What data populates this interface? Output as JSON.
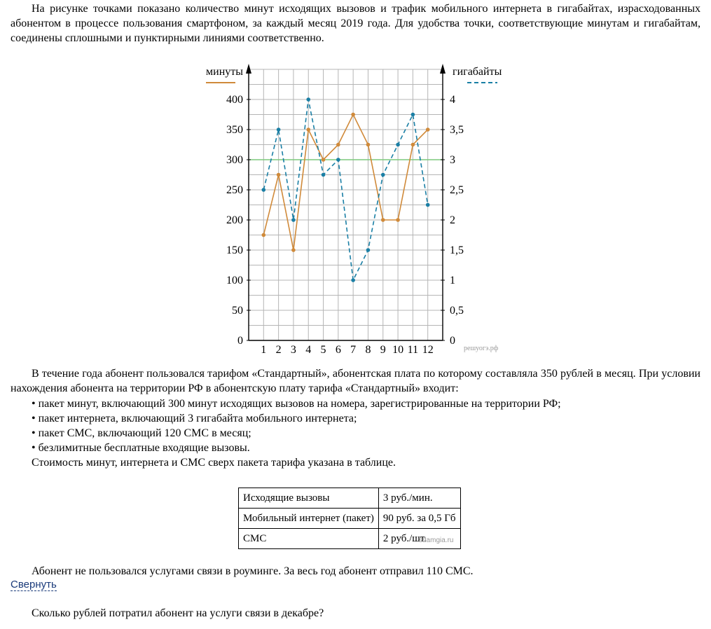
{
  "intro": "На рисунке точками показано количество минут исходящих вызовов и трафик мобильного интернета в гигабайтах, израсходованных абонентом в процессе пользования смартфоном, за каждый месяц 2019 года. Для удобства точки, соответствующие минутам и гигабайтам, соединены сплошными и пунктирными линиями соответственно.",
  "chart_data": {
    "type": "line",
    "x": [
      1,
      2,
      3,
      4,
      5,
      6,
      7,
      8,
      9,
      10,
      11,
      12
    ],
    "x_tick_labels": [
      "1",
      "2",
      "3",
      "4",
      "5",
      "6",
      "7",
      "8",
      "9",
      "10",
      "11",
      "12"
    ],
    "y_left_label": "минуты",
    "y_left_ticks": [
      "0",
      "50",
      "100",
      "150",
      "200",
      "250",
      "300",
      "350",
      "400"
    ],
    "y_left_range": [
      0,
      450
    ],
    "y_right_label": "гигабайты",
    "y_right_ticks": [
      "0",
      "0,5",
      "1",
      "1,5",
      "2",
      "2,5",
      "3",
      "3,5",
      "4"
    ],
    "y_right_range": [
      0,
      4.5
    ],
    "grid": true,
    "reference_line": {
      "value_left": 300,
      "color": "#7dc97d"
    },
    "series": [
      {
        "name": "минуты",
        "axis": "left",
        "style": "solid",
        "color": "#d08a3a",
        "values": [
          175,
          275,
          150,
          350,
          300,
          325,
          375,
          325,
          200,
          200,
          325,
          350
        ]
      },
      {
        "name": "гигабайты",
        "axis": "right",
        "style": "dashed",
        "color": "#1a7fa5",
        "values": [
          2.5,
          3.5,
          2,
          4,
          2.75,
          3,
          1,
          1.5,
          2.75,
          3.25,
          3.75,
          2.25
        ]
      }
    ],
    "watermark": "решуогэ.рф"
  },
  "tariff_text_1": "В течение года абонент пользовался тарифом «Стандартный», абонентская плата по которому составляла 350 рублей в месяц. При условии нахождения абонента на территории РФ в абонентскую плату тарифа «Стандартный» входит:",
  "tariff_items": [
    "• пакет минут, включающий 300 минут исходящих вызовов на номера, зарегистрированные на территории РФ;",
    "• пакет интернета, включающий 3 гигабайта мобильного интернета;",
    "• пакет СМС, включающий 120 СМС в месяц;",
    "• безлимитные бесплатные входящие вызовы."
  ],
  "cost_intro": "Стоимость минут, интернета и СМС сверх пакета тарифа указана в таблице.",
  "table": [
    [
      "Исходящие вызовы",
      "3 руб./мин."
    ],
    [
      "Мобильный интернет (пакет)",
      "90 руб. за 0,5 Гб"
    ],
    [
      "СМС",
      "2 руб./шт."
    ]
  ],
  "table_watermark": "sdamgia.ru",
  "roaming_text": "Абонент не пользовался услугами связи в роуминге. За весь год абонент отправил 110 СМС.",
  "collapse_link": "Свернуть",
  "question": "Сколько рублей потратил абонент на услуги связи в декабре?"
}
